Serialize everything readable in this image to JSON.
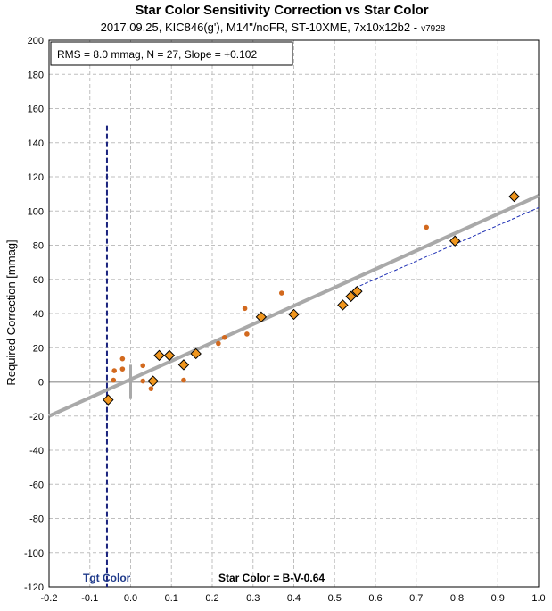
{
  "chart_data": {
    "type": "scatter",
    "title": "Star Color Sensitivity Correction vs Star Color",
    "subtitle": "2017.09.25, KIC846(g'), M14\"/noFR, ST-10XME, 7x10x12b2 -",
    "subtitle_tag": "v7928",
    "ylabel": "Required Correction [mmag]",
    "xlabel": "",
    "xlim": [
      -0.2,
      1.0
    ],
    "ylim": [
      -120,
      200
    ],
    "x_ticks": [
      "-0.2",
      "-0.1",
      "0.0",
      "0.1",
      "0.2",
      "0.3",
      "0.4",
      "0.5",
      "0.6",
      "0.7",
      "0.8",
      "0.9",
      "1.0"
    ],
    "y_ticks": [
      "-120",
      "-100",
      "-80",
      "-60",
      "-40",
      "-20",
      "0",
      "20",
      "40",
      "60",
      "80",
      "100",
      "120",
      "140",
      "160",
      "180",
      "200"
    ],
    "grid": true,
    "stats_box": "RMS = 8.0 mmag, N = 27, Slope = +0.102",
    "annotations": {
      "target_label": "Tgt Color",
      "star_color_label": "Star Color = B-V-0.64"
    },
    "target_color_x": -0.058,
    "target_line_y_range": [
      -120,
      150
    ],
    "zero_marker_x": 0.0,
    "zero_marker_y_range": [
      -10,
      10
    ],
    "fit_line": {
      "x": [
        -0.2,
        1.0
      ],
      "y": [
        -20,
        109
      ]
    },
    "extrapolation_line": {
      "x": [
        0.55,
        1.0
      ],
      "y": [
        55,
        102
      ]
    },
    "series": [
      {
        "marker": "diamond",
        "color": "#f0961e",
        "x": [
          -0.055,
          0.055,
          0.07,
          0.095,
          0.13,
          0.16,
          0.32,
          0.4,
          0.52,
          0.54,
          0.555,
          0.795,
          0.94
        ],
        "y": [
          -10.5,
          0.5,
          15.5,
          15.5,
          10,
          16.5,
          38,
          39.5,
          45,
          50,
          53,
          82.5,
          108.5
        ]
      },
      {
        "marker": "circle",
        "color": "#d2691e",
        "x": [
          -0.042,
          -0.04,
          -0.02,
          -0.02,
          0.03,
          0.03,
          0.05,
          0.13,
          0.215,
          0.23,
          0.28,
          0.285,
          0.37,
          0.725
        ],
        "y": [
          1,
          6.5,
          13.5,
          7.5,
          9.5,
          0.5,
          -4,
          1,
          22.5,
          26,
          43,
          28,
          52,
          90.5
        ]
      }
    ],
    "colors": {
      "fit_line": "#a9a9a9",
      "extrapolation": "#1e2fb4",
      "target_line": "#1a237e",
      "zero_marker": "#a9a9a9",
      "grid": "#bfbfbf",
      "zero_axis": "#a9a9a9",
      "annotation_blue": "#1f3a8a"
    }
  }
}
